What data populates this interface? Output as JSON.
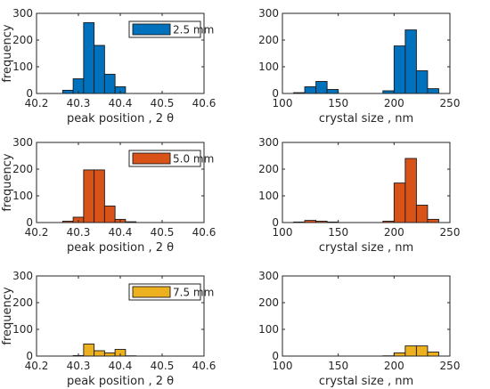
{
  "chart_data": [
    {
      "type": "bar",
      "row": 0,
      "col": 0,
      "color": "#0072BD",
      "xlim": [
        40.2,
        40.6
      ],
      "ylim": [
        0,
        300
      ],
      "xticks": [
        "40.2",
        "40.3",
        "40.4",
        "40.5",
        "40.6"
      ],
      "yticks": [
        "0",
        "100",
        "200",
        "300"
      ],
      "xlabel": "peak position , 2 θ",
      "ylabel": "frequency",
      "legend": "2.5 mm",
      "bin_width": 0.025,
      "bin_starts": [
        40.2625,
        40.2875,
        40.3125,
        40.3375,
        40.3625,
        40.3875
      ],
      "values": [
        12,
        55,
        265,
        180,
        72,
        25
      ]
    },
    {
      "type": "bar",
      "row": 0,
      "col": 1,
      "color": "#0072BD",
      "xlim": [
        100,
        250
      ],
      "ylim": [
        0,
        300
      ],
      "xticks": [
        "100",
        "150",
        "200",
        "250"
      ],
      "yticks": [
        "0",
        "100",
        "200",
        "300"
      ],
      "xlabel": "crystal size , nm",
      "ylabel": "",
      "legend": "",
      "bin_width": 10,
      "bin_starts": [
        110,
        120,
        130,
        140,
        190,
        200,
        210,
        220,
        230
      ],
      "values": [
        3,
        25,
        45,
        15,
        10,
        178,
        238,
        85,
        18
      ]
    },
    {
      "type": "bar",
      "row": 1,
      "col": 0,
      "color": "#D95319",
      "xlim": [
        40.2,
        40.6
      ],
      "ylim": [
        0,
        300
      ],
      "xticks": [
        "40.2",
        "40.3",
        "40.4",
        "40.5",
        "40.6"
      ],
      "yticks": [
        "0",
        "100",
        "200",
        "300"
      ],
      "xlabel": "peak position , 2 θ",
      "ylabel": "frequency",
      "legend": "5.0 mm",
      "bin_width": 0.025,
      "bin_starts": [
        40.2625,
        40.2875,
        40.3125,
        40.3375,
        40.3625,
        40.3875,
        40.4125
      ],
      "values": [
        5,
        20,
        197,
        197,
        62,
        12,
        3
      ]
    },
    {
      "type": "bar",
      "row": 1,
      "col": 1,
      "color": "#D95319",
      "xlim": [
        100,
        250
      ],
      "ylim": [
        0,
        300
      ],
      "xticks": [
        "100",
        "150",
        "200",
        "250"
      ],
      "yticks": [
        "0",
        "100",
        "200",
        "300"
      ],
      "xlabel": "crystal size , nm",
      "ylabel": "",
      "legend": "",
      "bin_width": 10,
      "bin_starts": [
        110,
        120,
        130,
        140,
        190,
        200,
        210,
        220,
        230
      ],
      "values": [
        2,
        8,
        5,
        2,
        5,
        148,
        240,
        65,
        12
      ]
    },
    {
      "type": "bar",
      "row": 2,
      "col": 0,
      "color": "#EDB120",
      "xlim": [
        40.2,
        40.6
      ],
      "ylim": [
        0,
        300
      ],
      "xticks": [
        "40.2",
        "40.3",
        "40.4",
        "40.5",
        "40.6"
      ],
      "yticks": [
        "0",
        "100",
        "200",
        "300"
      ],
      "xlabel": "peak position , 2 θ",
      "ylabel": "frequency",
      "legend": "7.5 mm",
      "bin_width": 0.025,
      "bin_starts": [
        40.2875,
        40.3125,
        40.3375,
        40.3625,
        40.3875,
        40.4125
      ],
      "values": [
        2,
        45,
        20,
        12,
        25,
        1
      ]
    },
    {
      "type": "bar",
      "row": 2,
      "col": 1,
      "color": "#EDB120",
      "xlim": [
        100,
        250
      ],
      "ylim": [
        0,
        300
      ],
      "xticks": [
        "100",
        "150",
        "200",
        "250"
      ],
      "yticks": [
        "0",
        "100",
        "200",
        "300"
      ],
      "xlabel": "crystal size , nm",
      "ylabel": "",
      "legend": "",
      "bin_width": 10,
      "bin_starts": [
        190,
        200,
        210,
        220,
        230
      ],
      "values": [
        1,
        12,
        38,
        38,
        15
      ]
    }
  ]
}
